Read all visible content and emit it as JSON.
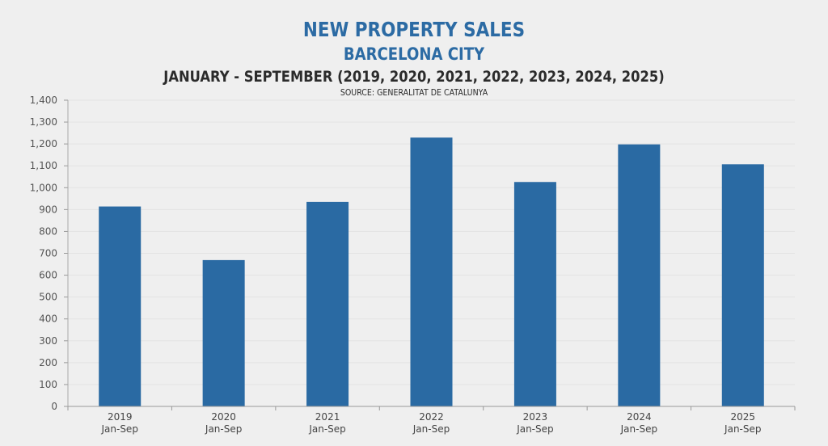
{
  "chart_data": {
    "type": "bar",
    "title": "NEW PROPERTY SALES",
    "subtitle": "BARCELONA CITY",
    "period": "JANUARY - SEPTEMBER (2019, 2020, 2021, 2022, 2023, 2024, 2025)",
    "source": "SOURCE: GENERALITAT DE CATALUNYA",
    "categories": [
      {
        "year": "2019",
        "period": "Jan-Sep"
      },
      {
        "year": "2020",
        "period": "Jan-Sep"
      },
      {
        "year": "2021",
        "period": "Jan-Sep"
      },
      {
        "year": "2022",
        "period": "Jan-Sep"
      },
      {
        "year": "2023",
        "period": "Jan-Sep"
      },
      {
        "year": "2024",
        "period": "Jan-Sep"
      },
      {
        "year": "2025",
        "period": "Jan-Sep"
      }
    ],
    "values": [
      914,
      669,
      935,
      1229,
      1026,
      1198,
      1107
    ],
    "xlabel": "",
    "ylabel": "",
    "ylim": [
      0,
      1400
    ],
    "yticks": [
      0,
      100,
      200,
      300,
      400,
      500,
      600,
      700,
      800,
      900,
      1000,
      1100,
      1200,
      1300,
      1400
    ],
    "ytick_labels": [
      "0",
      "100",
      "200",
      "300",
      "400",
      "500",
      "600",
      "700",
      "800",
      "900",
      "1,000",
      "1,100",
      "1,200",
      "1,300",
      "1,400"
    ],
    "grid": true,
    "legend": "none",
    "colors": {
      "bar": "#2a6aa3",
      "title": "#2c6ba4",
      "text": "#2b2b2b",
      "background": "#efefef"
    }
  }
}
